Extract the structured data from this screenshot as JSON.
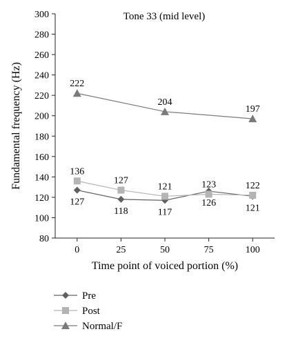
{
  "chart_data": {
    "type": "line",
    "title": "Tone 33 (mid level)",
    "xlabel": "Time point of voiced portion (%)",
    "ylabel": "Fundamental frequency (Hz)",
    "x": [
      0,
      25,
      50,
      75,
      100
    ],
    "xlim": [
      -12.5,
      112.5
    ],
    "ylim": [
      80,
      300
    ],
    "yticks": [
      80,
      100,
      120,
      140,
      160,
      180,
      200,
      220,
      240,
      260,
      280,
      300
    ],
    "grid": false,
    "legend_position": "bottom-left",
    "series": [
      {
        "name": "Pre",
        "marker": "diamond",
        "color": "#606060",
        "values": [
          127,
          118,
          117,
          126,
          121
        ],
        "labels": [
          "127",
          "118",
          "117",
          "126",
          "121"
        ],
        "label_position": "below"
      },
      {
        "name": "Post",
        "marker": "square",
        "color": "#b4b4b4",
        "values": [
          136,
          127,
          121,
          123,
          122
        ],
        "labels": [
          "136",
          "127",
          "121",
          "123",
          "122"
        ],
        "label_position": "above"
      },
      {
        "name": "Normal/F",
        "marker": "triangle",
        "color": "#7a7a7a",
        "x": [
          0,
          50,
          100
        ],
        "values": [
          222,
          204,
          197
        ],
        "labels": [
          "222",
          "204",
          "197"
        ],
        "label_position": "above"
      }
    ]
  }
}
